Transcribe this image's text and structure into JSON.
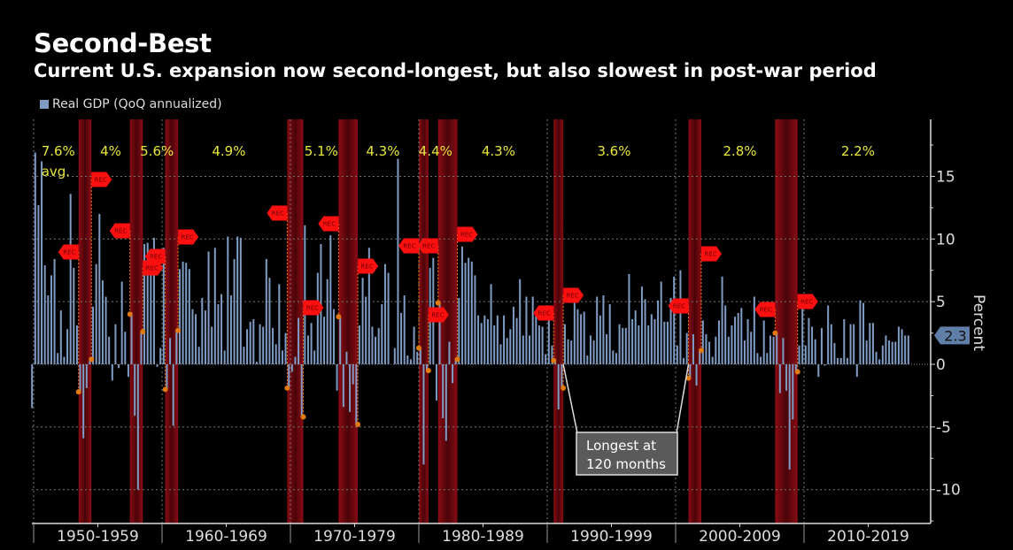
{
  "header": {
    "title": "Second-Best",
    "subtitle": "Current U.S. expansion now second-longest, but also slowest in post-war period"
  },
  "colors": {
    "bars": "#7f9cc4",
    "recession": "#6e0a10",
    "rec_flag": "#ff1010",
    "average_text": "#e8e63a",
    "marker": "#e07a10"
  },
  "chart_data": {
    "type": "bar",
    "title": "Second-Best",
    "legend": {
      "label": "Real GDP (QoQ annualized)",
      "position": "top-left"
    },
    "ylabel": "Percent",
    "y_axis_side": "right",
    "ylim": [
      -12.7,
      19.5
    ],
    "yticks": [
      "15",
      "10",
      "5",
      "0",
      "-5",
      "-10"
    ],
    "ytick_values": [
      15,
      10,
      5,
      0,
      -5,
      -10
    ],
    "grid": true,
    "x_start_quarter": "1949Q4",
    "x_end_quarter": "2018Q1",
    "xlim": [
      1950,
      2020
    ],
    "x_tick_labels": [
      "1950-1959",
      "1960-1969",
      "1970-1979",
      "1980-1989",
      "1990-1999",
      "2000-2009",
      "2010-2019"
    ],
    "values": [
      -3.5,
      16.9,
      12.7,
      16.2,
      7.9,
      5.5,
      7.1,
      8.4,
      0.9,
      4.3,
      0.6,
      2.8,
      13.6,
      7.7,
      3.1,
      -2.2,
      -5.9,
      -1.9,
      0.4,
      4.6,
      8.0,
      12.0,
      6.7,
      5.4,
      2.2,
      -1.3,
      3.2,
      -0.3,
      6.6,
      2.6,
      -1.0,
      4.0,
      -4.1,
      -10.0,
      2.6,
      9.6,
      9.7,
      7.9,
      10.1,
      -0.2,
      1.3,
      9.3,
      -2.0,
      2.1,
      -4.9,
      2.7,
      7.6,
      8.2,
      8.1,
      7.6,
      4.4,
      4.0,
      1.4,
      5.3,
      4.3,
      9.0,
      3.0,
      9.3,
      4.8,
      5.6,
      1.1,
      10.2,
      5.5,
      8.4,
      10.2,
      10.1,
      1.4,
      2.8,
      3.4,
      3.6,
      0.2,
      3.2,
      3.0,
      8.4,
      6.9,
      2.9,
      1.6,
      6.4,
      1.1,
      2.5,
      -1.9,
      -0.6,
      0.6,
      3.7,
      -4.2,
      11.1,
      2.3,
      3.3,
      1.1,
      7.3,
      9.6,
      3.8,
      6.8,
      10.3,
      4.4,
      -2.1,
      3.8,
      -3.4,
      1.0,
      -3.8,
      -1.6,
      -4.8,
      3.1,
      6.9,
      5.4,
      9.3,
      3.0,
      2.2,
      2.9,
      4.8,
      8.0,
      7.3,
      0.0,
      1.3,
      16.4,
      4.1,
      5.5,
      0.7,
      0.4,
      3.0,
      1.0,
      1.3,
      -8.0,
      -0.5,
      7.7,
      8.5,
      -2.9,
      4.9,
      -4.3,
      -6.1,
      1.8,
      -1.5,
      0.4,
      5.3,
      9.4,
      8.1,
      8.5,
      8.2,
      7.1,
      3.9,
      3.3,
      3.9,
      3.6,
      6.4,
      3.1,
      3.9,
      1.6,
      3.9,
      2.1,
      2.8,
      4.6,
      3.7,
      6.8,
      2.3,
      5.4,
      2.3,
      5.4,
      4.1,
      3.1,
      3.0,
      0.8,
      4.4,
      1.5,
      0.3,
      -3.6,
      -1.9,
      3.2,
      2.0,
      1.9,
      4.9,
      4.4,
      4.0,
      4.2,
      0.7,
      2.3,
      1.9,
      5.4,
      3.9,
      5.5,
      2.4,
      4.8,
      1.1,
      0.9,
      3.2,
      2.9,
      2.9,
      7.2,
      3.6,
      4.3,
      3.1,
      6.2,
      5.2,
      3.1,
      4.0,
      3.6,
      5.1,
      6.6,
      3.4,
      3.4,
      5.3,
      7.0,
      1.5,
      7.5,
      0.5,
      2.5,
      -1.1,
      2.4,
      -1.7,
      1.1,
      3.5,
      2.4,
      1.8,
      0.6,
      2.2,
      3.5,
      7.0,
      4.7,
      2.2,
      3.1,
      3.8,
      4.1,
      4.5,
      1.9,
      3.6,
      2.6,
      5.4,
      0.9,
      0.6,
      3.5,
      0.9,
      2.3,
      2.2,
      2.5,
      -2.3,
      2.1,
      -2.1,
      -8.4,
      -4.4,
      -0.6,
      1.5,
      4.5,
      1.5,
      3.7,
      3.0,
      2.0,
      -1.0,
      2.9,
      -0.1,
      4.7,
      3.2,
      1.7,
      0.5,
      0.5,
      3.6,
      0.5,
      3.2,
      3.2,
      -1.0,
      5.1,
      4.9,
      1.9,
      3.3,
      3.3,
      1.0,
      0.4,
      1.5,
      2.3,
      1.9,
      1.8,
      1.8,
      3.0,
      2.8,
      2.3,
      2.3
    ],
    "last_value_label": "2.3",
    "recessions": [
      [
        "1953Q3",
        "1954Q2"
      ],
      [
        "1957Q3",
        "1958Q2"
      ],
      [
        "1960Q2",
        "1961Q1"
      ],
      [
        "1969Q4",
        "1970Q4"
      ],
      [
        "1973Q4",
        "1975Q1"
      ],
      [
        "1980Q1",
        "1980Q3"
      ],
      [
        "1981Q3",
        "1982Q4"
      ],
      [
        "1990Q3",
        "1991Q1"
      ],
      [
        "2001Q1",
        "2001Q4"
      ],
      [
        "2007Q4",
        "2009Q2"
      ]
    ],
    "recession_flag_label": "REC",
    "expansion_averages": [
      "7.6%",
      "4%",
      "5.6%",
      "4.9%",
      "5.1%",
      "4.3%",
      "4.4%",
      "4.3%",
      "3.6%",
      "2.8%",
      "2.2%"
    ],
    "average_note": "avg.",
    "annotation": {
      "line1": "Longest at",
      "line2": "120 months",
      "from": "1991Q1",
      "to": "2001Q1"
    }
  }
}
